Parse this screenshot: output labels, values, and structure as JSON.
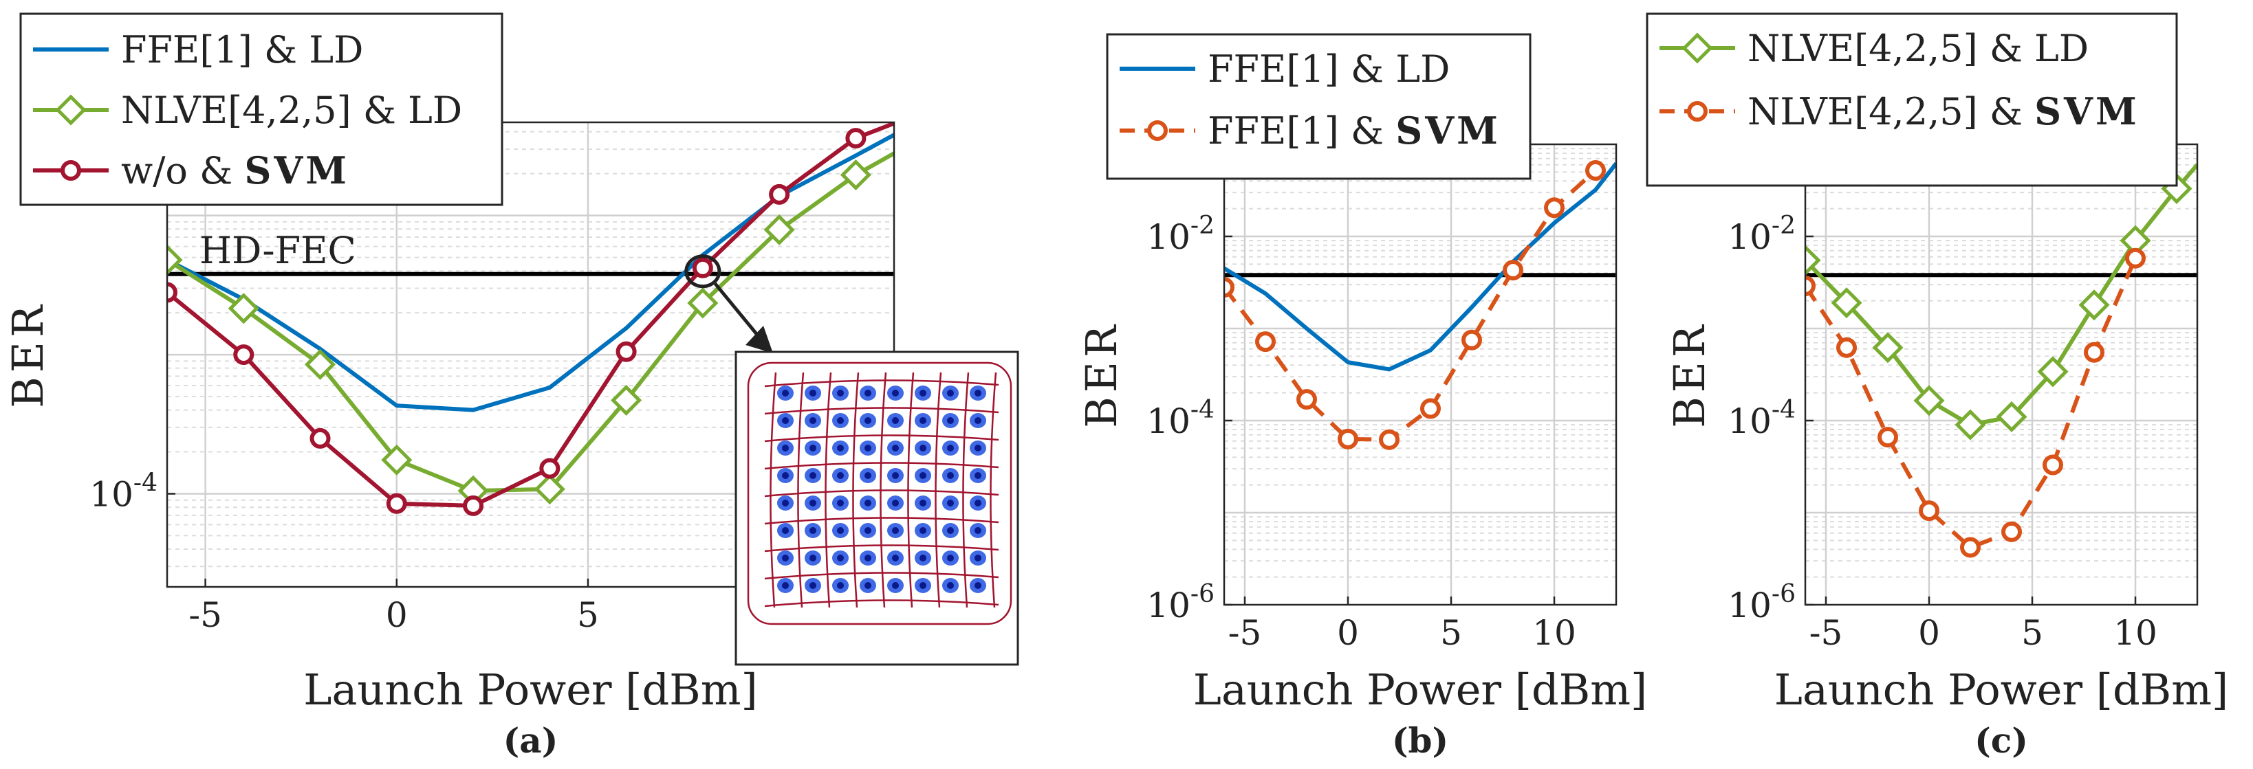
{
  "colors": {
    "ffe_ld": "#0072BD",
    "nlve_ld": "#77AC30",
    "wo_svm": "#A2142F",
    "svm_dashed": "#D95319",
    "threshold": "#000000",
    "grid": "#d6d6d6"
  },
  "chart_data": [
    {
      "type": "line",
      "caption": "(a)",
      "xlabel": "Launch Power [dBm]",
      "ylabel": "BER",
      "xlim": [
        -6,
        13
      ],
      "yscale": "log",
      "ylim": [
        2.14e-05,
        0.0468
      ],
      "xticks": [
        {
          "v": -5,
          "label": "-5"
        },
        {
          "v": 0,
          "label": "0"
        },
        {
          "v": 5,
          "label": "5"
        }
      ],
      "yticks": [
        {
          "v": 0.0001,
          "base": "10",
          "exp": "-4"
        }
      ],
      "grid": true,
      "legend_position": "top-left",
      "threshold": {
        "label": "HD-FEC",
        "y": 0.0038
      },
      "inset": {
        "description_icon": "constellation-contour-icon",
        "points_to_x": 8
      },
      "series": [
        {
          "name": "FFE[1] & LD",
          "color_key": "ffe_ld",
          "dash": false,
          "marker": "none",
          "x": [
            -6,
            -4,
            -2,
            0,
            2,
            4,
            6,
            8,
            10,
            12,
            13
          ],
          "y": [
            0.0048,
            0.0025,
            0.0011,
            0.00043,
            0.0004,
            0.00058,
            0.00155,
            0.0052,
            0.0138,
            0.027,
            0.038
          ]
        },
        {
          "name": "NLVE[4,2,5] & LD",
          "color_key": "nlve_ld",
          "dash": false,
          "marker": "diamond",
          "x": [
            -6,
            -4,
            -2,
            0,
            2,
            4,
            6,
            8,
            10,
            12,
            13
          ],
          "y": [
            0.0048,
            0.00215,
            0.00085,
            0.000175,
            0.000105,
            0.000108,
            0.00047,
            0.00235,
            0.0079,
            0.0196,
            0.028
          ]
        },
        {
          "name": "w/o & SVM",
          "color_key": "wo_svm",
          "dash": false,
          "marker": "circle",
          "x": [
            -6,
            -4,
            -2,
            0,
            2,
            4,
            6,
            8,
            10,
            12,
            13
          ],
          "y": [
            0.0028,
            0.001,
            0.00025,
            8.5e-05,
            8.2e-05,
            0.000152,
            0.00105,
            0.0042,
            0.0142,
            0.036,
            0.046
          ]
        }
      ]
    },
    {
      "type": "line",
      "caption": "(b)",
      "xlabel": "Launch Power [dBm]",
      "ylabel": "BER",
      "xlim": [
        -6,
        13
      ],
      "yscale": "log",
      "ylim": [
        1e-06,
        0.1
      ],
      "xticks": [
        {
          "v": -5,
          "label": "-5"
        },
        {
          "v": 0,
          "label": "0"
        },
        {
          "v": 5,
          "label": "5"
        },
        {
          "v": 10,
          "label": "10"
        }
      ],
      "yticks": [
        {
          "v": 1e-06,
          "base": "10",
          "exp": "-6"
        },
        {
          "v": 0.0001,
          "base": "10",
          "exp": "-4"
        },
        {
          "v": 0.01,
          "base": "10",
          "exp": "-2"
        }
      ],
      "grid": true,
      "legend_position": "top",
      "threshold": {
        "label": "",
        "y": 0.0038
      },
      "series": [
        {
          "name": "FFE[1] & LD",
          "color_key": "ffe_ld",
          "dash": false,
          "marker": "none",
          "x": [
            -6,
            -4,
            -2,
            0,
            2,
            4,
            6,
            8,
            10,
            12,
            13
          ],
          "y": [
            0.0045,
            0.0024,
            0.001,
            0.00043,
            0.00036,
            0.00058,
            0.0017,
            0.0053,
            0.014,
            0.032,
            0.062
          ]
        },
        {
          "name": "FFE[1] & SVM",
          "color_key": "svm_dashed",
          "dash": true,
          "marker": "circle",
          "x": [
            -6,
            -4,
            -2,
            0,
            2,
            4,
            6,
            8,
            10,
            12
          ],
          "y": [
            0.0028,
            0.00072,
            0.00017,
            6.3e-05,
            6.2e-05,
            0.000135,
            0.00075,
            0.0043,
            0.0205,
            0.052
          ]
        }
      ]
    },
    {
      "type": "line",
      "caption": "(c)",
      "xlabel": "Launch Power [dBm]",
      "ylabel": "BER",
      "xlim": [
        -6,
        13
      ],
      "yscale": "log",
      "ylim": [
        1e-06,
        0.1
      ],
      "xticks": [
        {
          "v": -5,
          "label": "-5"
        },
        {
          "v": 0,
          "label": "0"
        },
        {
          "v": 5,
          "label": "5"
        },
        {
          "v": 10,
          "label": "10"
        }
      ],
      "yticks": [
        {
          "v": 1e-06,
          "base": "10",
          "exp": "-6"
        },
        {
          "v": 0.0001,
          "base": "10",
          "exp": "-4"
        },
        {
          "v": 0.01,
          "base": "10",
          "exp": "-2"
        }
      ],
      "grid": true,
      "legend_position": "top",
      "threshold": {
        "label": "",
        "y": 0.0038
      },
      "series": [
        {
          "name": "NLVE[4,2,5] & LD",
          "color_key": "nlve_ld",
          "dash": false,
          "marker": "diamond",
          "x": [
            -6,
            -4,
            -2,
            0,
            2,
            4,
            6,
            8,
            10,
            12,
            13
          ],
          "y": [
            0.0055,
            0.0019,
            0.00062,
            0.000165,
            9e-05,
            0.00011,
            0.00034,
            0.0018,
            0.009,
            0.033,
            0.06
          ]
        },
        {
          "name": "NLVE[4,2,5] & SVM",
          "color_key": "svm_dashed",
          "dash": true,
          "marker": "circle",
          "x": [
            -6,
            -4,
            -2,
            0,
            2,
            4,
            6,
            8,
            10
          ],
          "y": [
            0.0029,
            0.00062,
            6.6e-05,
            1.05e-05,
            4.2e-06,
            6.2e-06,
            3.3e-05,
            0.00055,
            0.0058
          ]
        }
      ]
    }
  ]
}
